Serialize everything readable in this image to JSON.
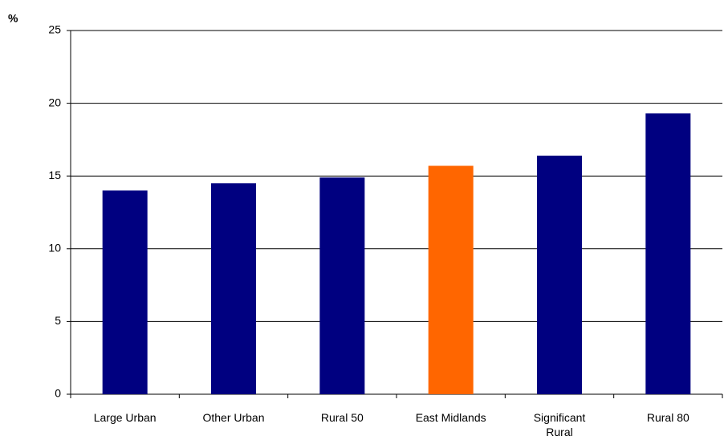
{
  "chart_data": {
    "type": "bar",
    "y_label": "%",
    "categories": [
      "Large Urban",
      "Other Urban",
      "Rural 50",
      "East Midlands",
      "Significant Rural",
      "Rural 80"
    ],
    "values": [
      14.0,
      14.5,
      14.9,
      15.7,
      16.4,
      19.3
    ],
    "colors": [
      "#000080",
      "#000080",
      "#000080",
      "#ff6600",
      "#000080",
      "#000080"
    ],
    "ylim": [
      0,
      25
    ],
    "yticks": [
      0,
      5,
      10,
      15,
      20,
      25
    ],
    "grid": true
  }
}
